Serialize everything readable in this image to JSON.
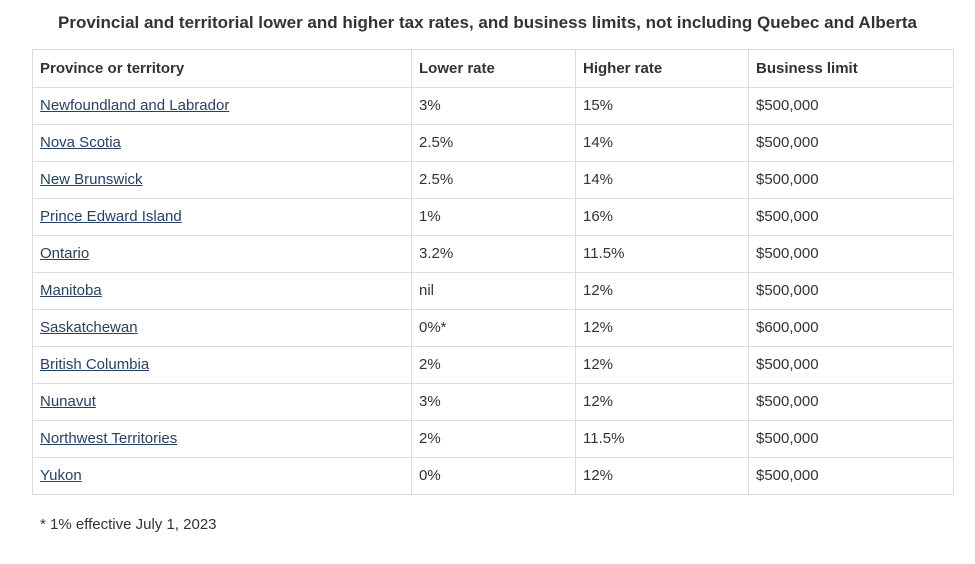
{
  "page": {
    "title": "Provincial and territorial lower and higher tax rates, and business limits, not including Quebec and Alberta",
    "footnote": "* 1% effective July 1, 2023"
  },
  "colors": {
    "link": "#284162",
    "text": "#333333",
    "border": "#dddddd",
    "background": "#ffffff"
  },
  "table": {
    "columns": [
      "Province or territory",
      "Lower rate",
      "Higher rate",
      "Business limit"
    ],
    "rows": [
      {
        "province": "Newfoundland and Labrador",
        "lower_rate": "3%",
        "higher_rate": "15%",
        "business_limit": "$500,000"
      },
      {
        "province": "Nova Scotia",
        "lower_rate": "2.5%",
        "higher_rate": "14%",
        "business_limit": "$500,000"
      },
      {
        "province": "New Brunswick",
        "lower_rate": "2.5%",
        "higher_rate": "14%",
        "business_limit": "$500,000"
      },
      {
        "province": "Prince Edward Island",
        "lower_rate": "1%",
        "higher_rate": "16%",
        "business_limit": "$500,000"
      },
      {
        "province": "Ontario",
        "lower_rate": "3.2%",
        "higher_rate": "11.5%",
        "business_limit": "$500,000"
      },
      {
        "province": "Manitoba",
        "lower_rate": "nil",
        "higher_rate": "12%",
        "business_limit": "$500,000"
      },
      {
        "province": "Saskatchewan",
        "lower_rate": "0%*",
        "higher_rate": "12%",
        "business_limit": "$600,000"
      },
      {
        "province": "British Columbia",
        "lower_rate": "2%",
        "higher_rate": "12%",
        "business_limit": "$500,000"
      },
      {
        "province": "Nunavut",
        "lower_rate": "3%",
        "higher_rate": "12%",
        "business_limit": "$500,000"
      },
      {
        "province": "Northwest Territories",
        "lower_rate": "2%",
        "higher_rate": "11.5%",
        "business_limit": "$500,000"
      },
      {
        "province": "Yukon",
        "lower_rate": "0%",
        "higher_rate": "12%",
        "business_limit": "$500,000"
      }
    ]
  },
  "chart_data": {
    "type": "table",
    "title": "Provincial and territorial lower and higher tax rates, and business limits, not including Quebec and Alberta",
    "columns": [
      "Province or territory",
      "Lower rate",
      "Higher rate",
      "Business limit"
    ],
    "rows": [
      [
        "Newfoundland and Labrador",
        "3%",
        "15%",
        "$500,000"
      ],
      [
        "Nova Scotia",
        "2.5%",
        "14%",
        "$500,000"
      ],
      [
        "New Brunswick",
        "2.5%",
        "14%",
        "$500,000"
      ],
      [
        "Prince Edward Island",
        "1%",
        "16%",
        "$500,000"
      ],
      [
        "Ontario",
        "3.2%",
        "11.5%",
        "$500,000"
      ],
      [
        "Manitoba",
        "nil",
        "12%",
        "$500,000"
      ],
      [
        "Saskatchewan",
        "0%*",
        "12%",
        "$600,000"
      ],
      [
        "British Columbia",
        "2%",
        "12%",
        "$500,000"
      ],
      [
        "Nunavut",
        "3%",
        "12%",
        "$500,000"
      ],
      [
        "Northwest Territories",
        "2%",
        "11.5%",
        "$500,000"
      ],
      [
        "Yukon",
        "0%",
        "12%",
        "$500,000"
      ]
    ],
    "annotations": [
      "* 1% effective July 1, 2023"
    ]
  }
}
